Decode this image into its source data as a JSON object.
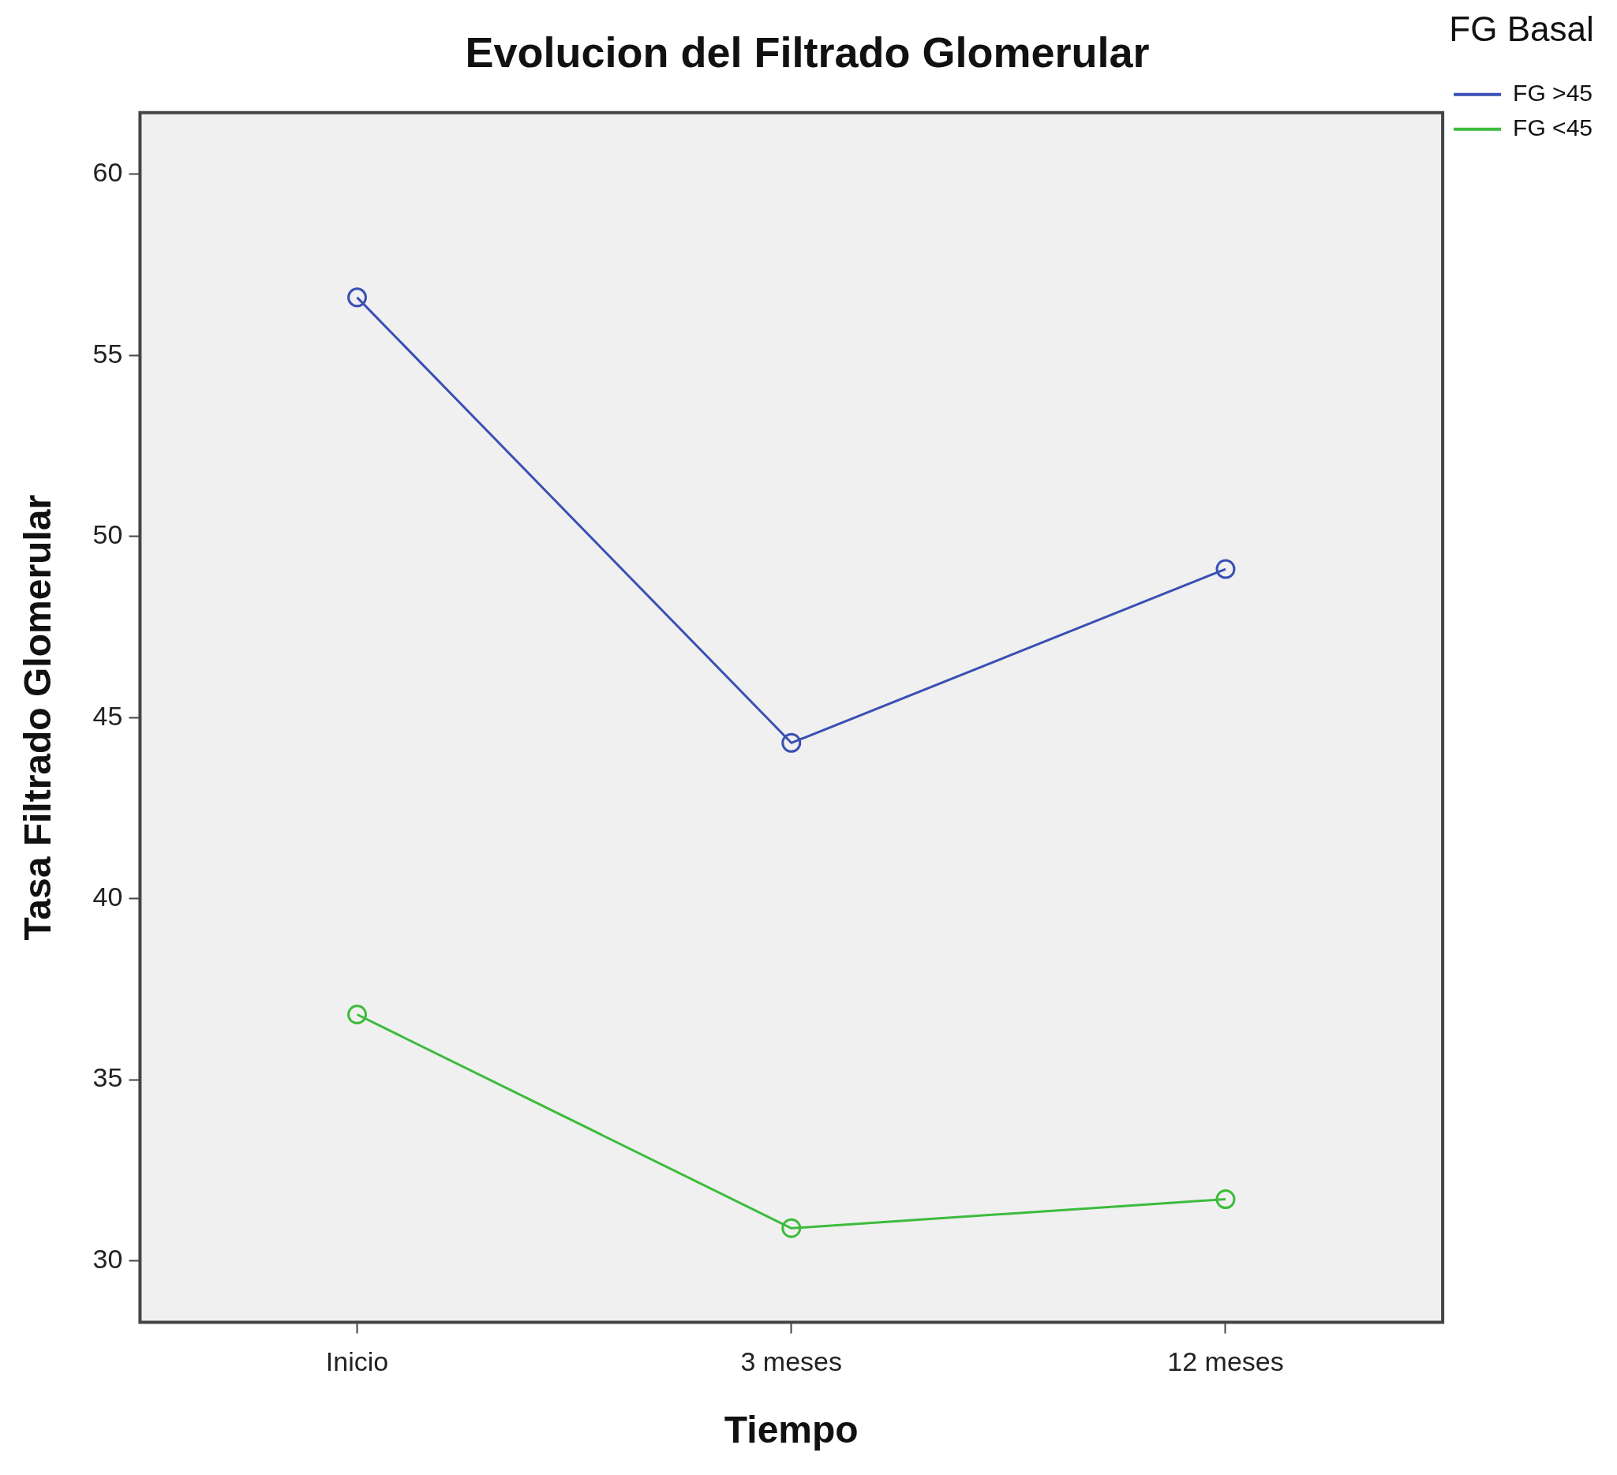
{
  "chart_data": {
    "type": "line",
    "title": "Evolucion del Filtrado Glomerular",
    "xlabel": "Tiempo",
    "ylabel": "Tasa Filtrado Glomerular",
    "legend_title": "FG Basal",
    "categories": [
      "Inicio",
      "3 meses",
      "12 meses"
    ],
    "series": [
      {
        "name": "FG >45",
        "color": "#3a50b4",
        "values": [
          56.6,
          44.3,
          49.1
        ]
      },
      {
        "name": "FG <45",
        "color": "#3cbc3c",
        "values": [
          36.8,
          30.9,
          31.7
        ]
      }
    ],
    "ylim": [
      28.3,
      61.7
    ],
    "yticks": [
      30,
      35,
      40,
      45,
      50,
      55,
      60
    ],
    "legend": "top right",
    "marker": "circle",
    "line_style": "solid"
  }
}
